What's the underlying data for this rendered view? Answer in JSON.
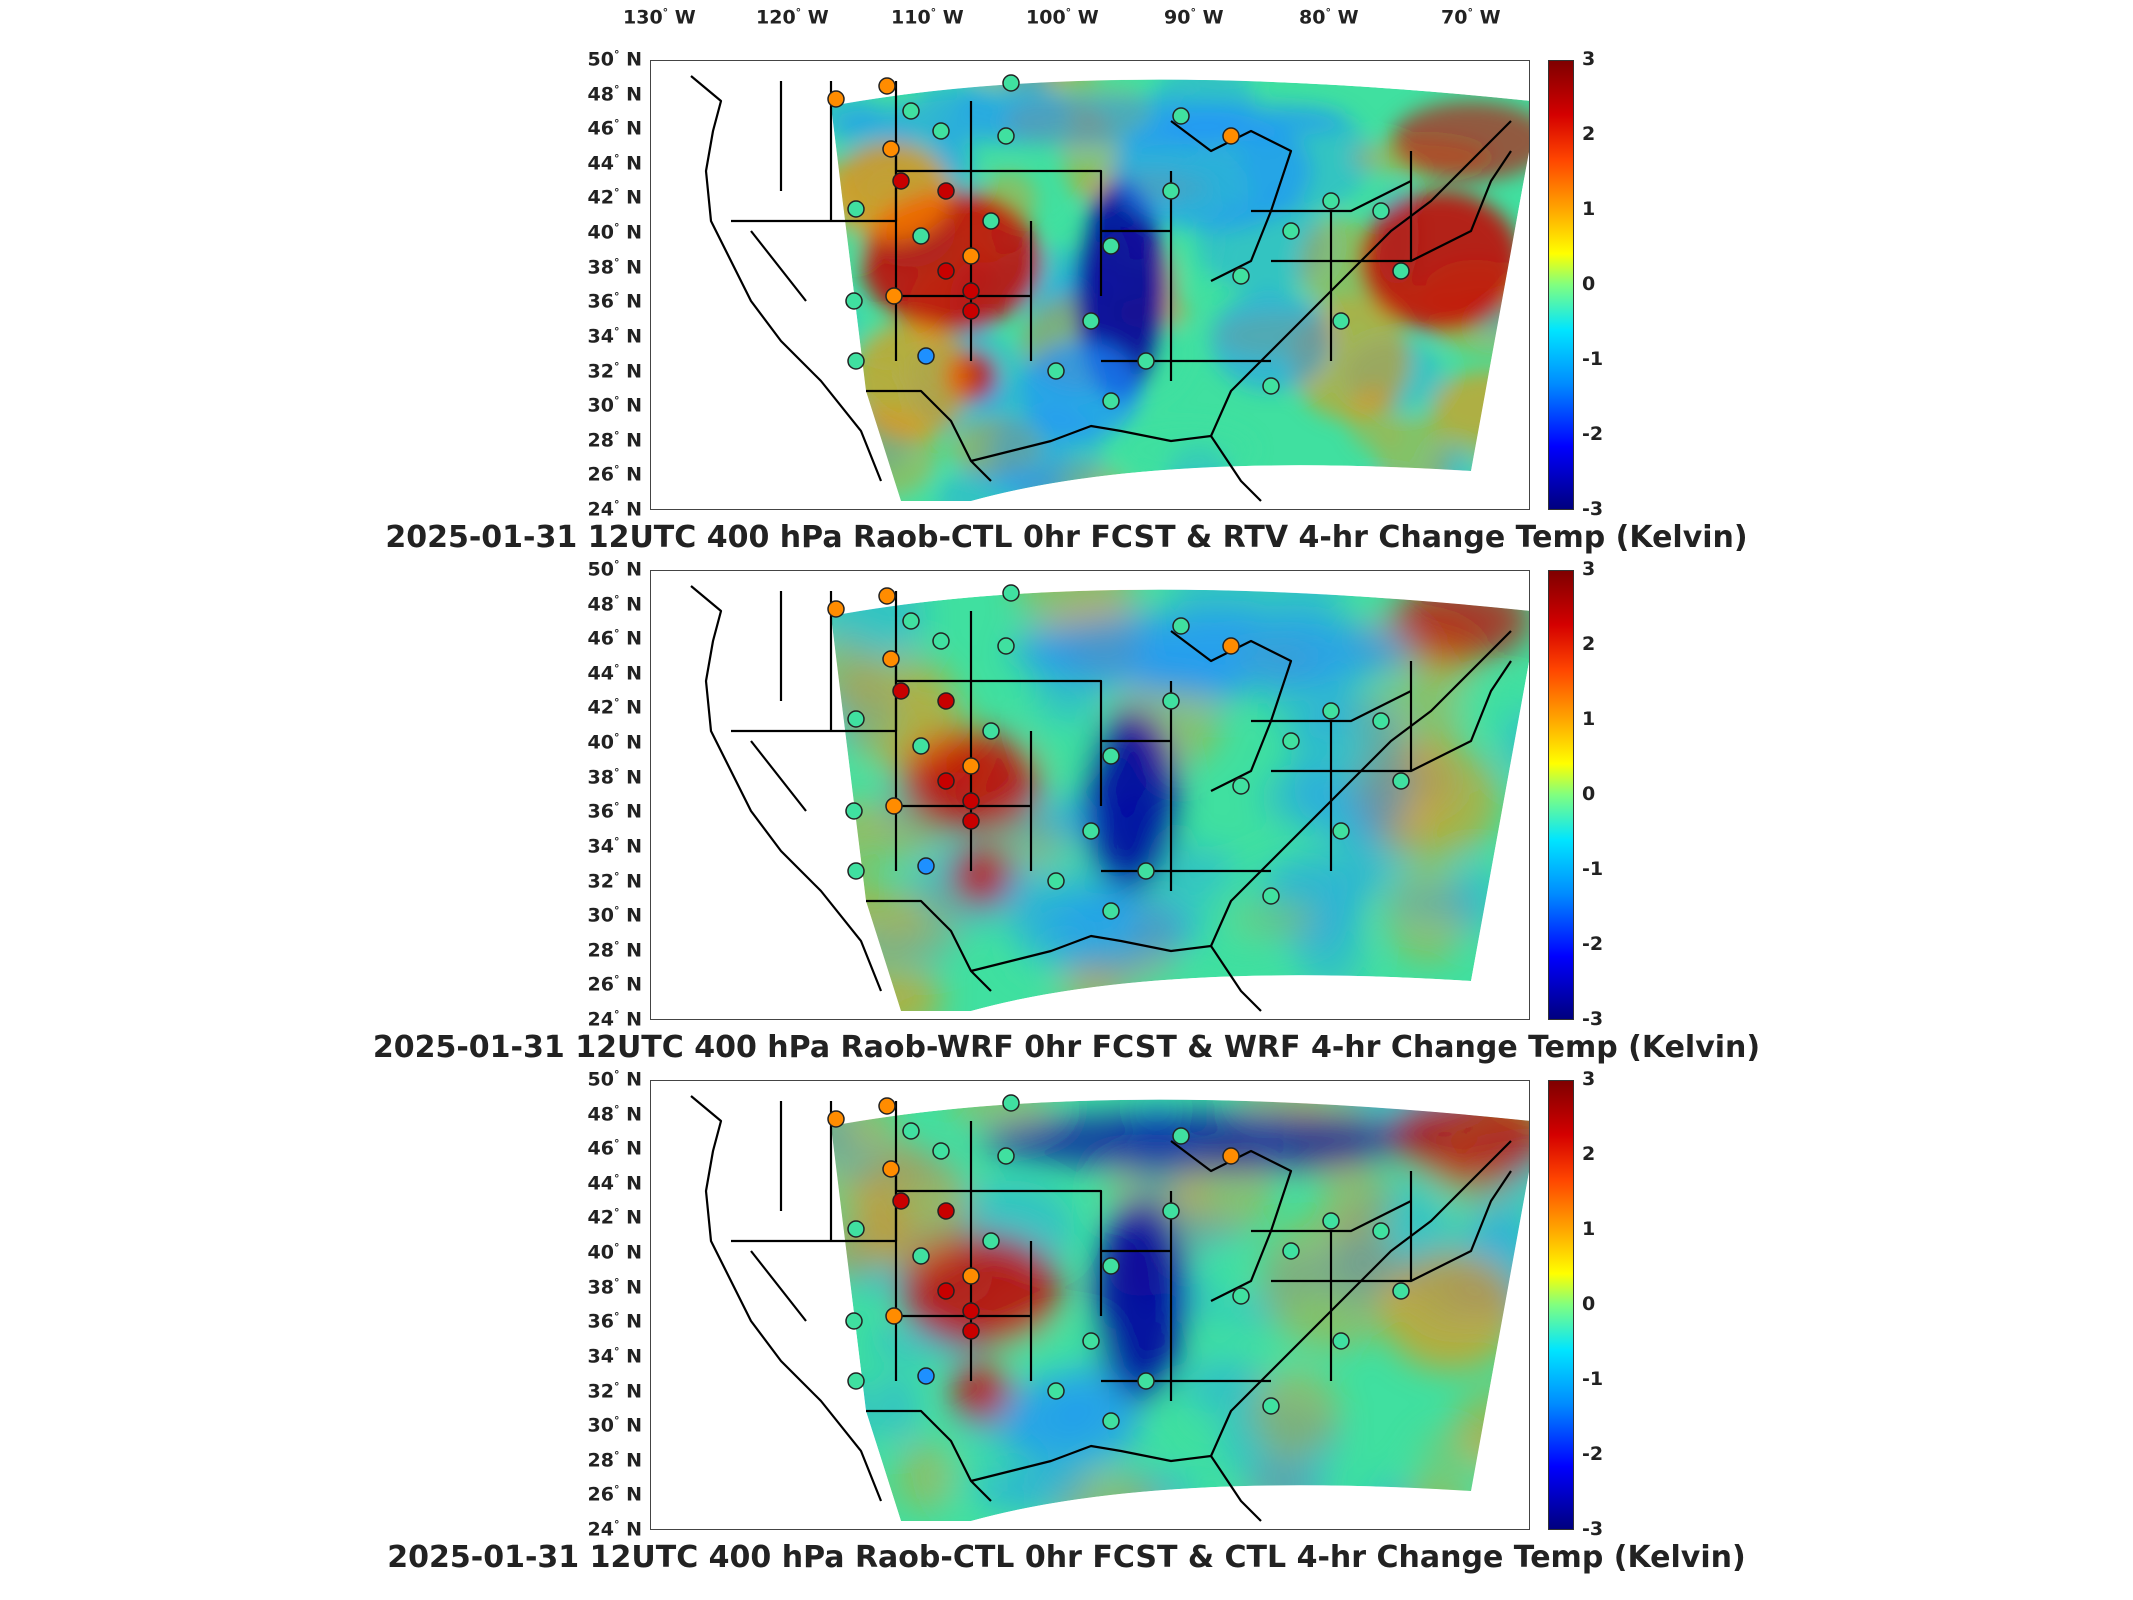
{
  "lon_labels": [
    "130",
    "120",
    "110",
    "100",
    "90",
    "80",
    "70"
  ],
  "lon_suffix": "W",
  "lat_labels": [
    "50",
    "48",
    "46",
    "44",
    "42",
    "40",
    "38",
    "36",
    "34",
    "32",
    "30",
    "28",
    "26",
    "24"
  ],
  "lat_suffix": "N",
  "colorbar": {
    "ticks": [
      "3",
      "2",
      "1",
      "0",
      "-1",
      "-2",
      "-3"
    ],
    "range": [
      -3,
      3
    ],
    "colormap": "jet"
  },
  "panels": [
    {
      "title": "2025-01-31 12UTC 400 hPa Raob-CTL 0hr FCST & RTV 4-hr Change Temp (Kelvin)"
    },
    {
      "title": "2025-01-31 12UTC 400 hPa Raob-WRF 0hr FCST & WRF 4-hr Change Temp (Kelvin)"
    },
    {
      "title": "2025-01-31 12UTC 400 hPa Raob-CTL 0hr FCST & CTL 4-hr Change Temp (Kelvin)"
    }
  ],
  "map": {
    "features": [
      "US state boundaries",
      "coastlines",
      "raob station markers"
    ],
    "field_colors": {
      "hot": "#c80000",
      "warm": "#ff8c00",
      "neutral": "#40e0a0",
      "cool": "#1e90ff",
      "cold": "#0000a0"
    }
  }
}
